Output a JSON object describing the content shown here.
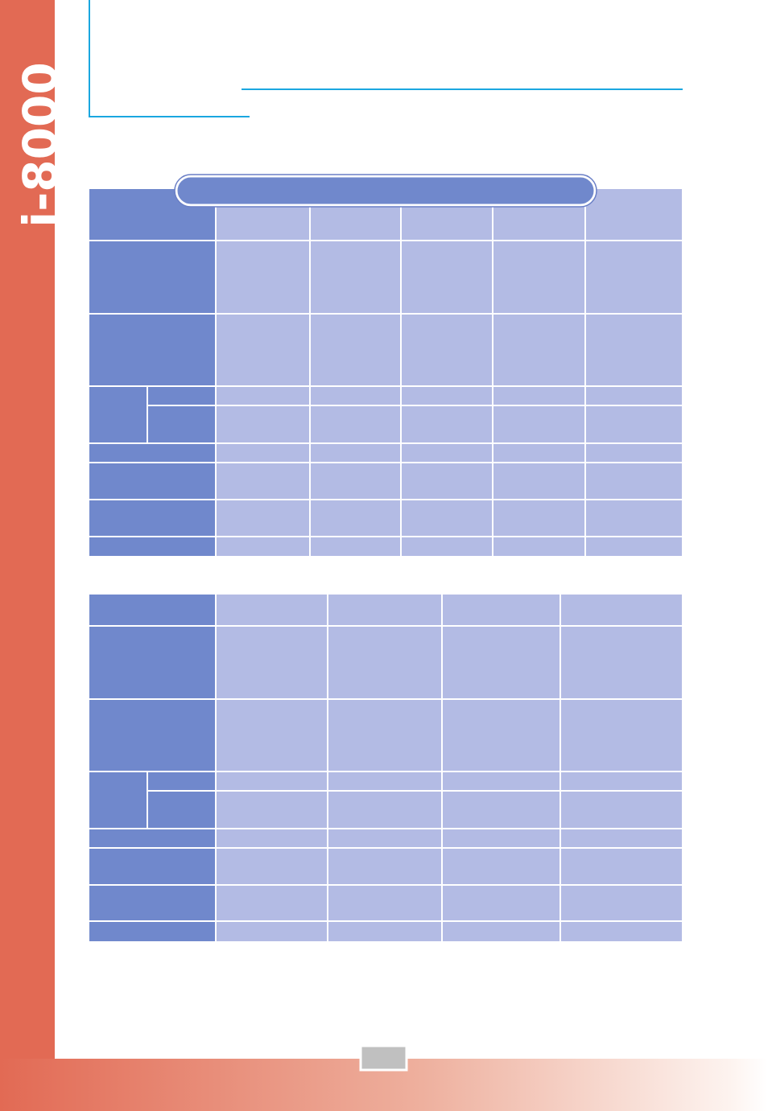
{
  "sidebar": {
    "label": "i-8000"
  }
}
